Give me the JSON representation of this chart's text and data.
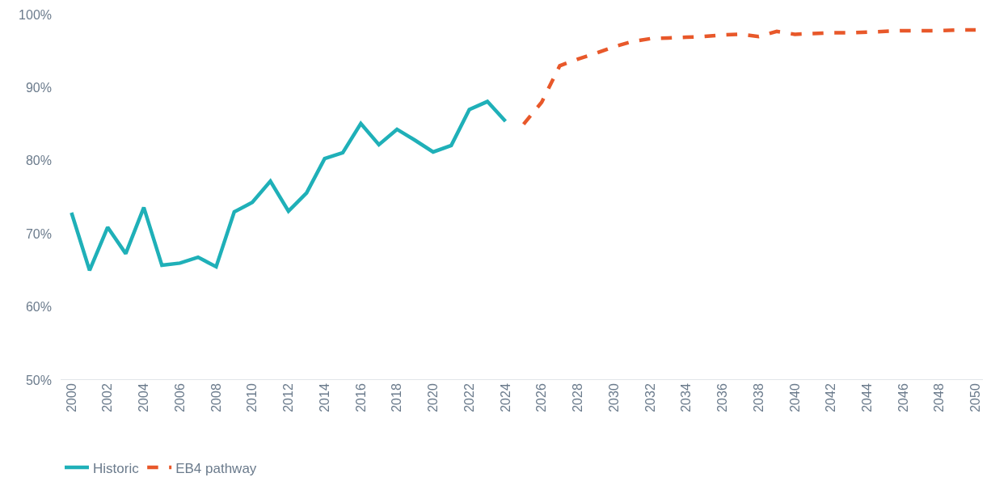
{
  "chart_data": {
    "type": "line",
    "ylim": [
      50,
      100
    ],
    "yticks": [
      {
        "value": 50,
        "label": "50%"
      },
      {
        "value": 60,
        "label": "60%"
      },
      {
        "value": 70,
        "label": "70%"
      },
      {
        "value": 80,
        "label": "80%"
      },
      {
        "value": 90,
        "label": "90%"
      },
      {
        "value": 100,
        "label": "100%"
      }
    ],
    "xlim": [
      1999.4,
      2050.4
    ],
    "xticks": [
      2000,
      2002,
      2004,
      2006,
      2008,
      2010,
      2012,
      2014,
      2016,
      2018,
      2020,
      2022,
      2024,
      2026,
      2028,
      2030,
      2032,
      2034,
      2036,
      2038,
      2040,
      2042,
      2044,
      2046,
      2048,
      2050
    ],
    "grid": false,
    "legend": "bottom left",
    "marker": "none",
    "series": [
      {
        "name": "Historic",
        "color": "#1fb0b8",
        "line_style": "solid",
        "x": [
          2000,
          2001,
          2002,
          2003,
          2004,
          2005,
          2006,
          2007,
          2008,
          2009,
          2010,
          2011,
          2012,
          2013,
          2014,
          2015,
          2016,
          2017,
          2018,
          2019,
          2020,
          2021,
          2022,
          2023,
          2024
        ],
        "values": [
          72.9,
          65.0,
          70.9,
          67.3,
          73.6,
          65.7,
          66.0,
          66.8,
          65.5,
          73.0,
          74.3,
          77.2,
          73.1,
          75.6,
          80.3,
          81.1,
          85.1,
          82.2,
          84.3,
          82.8,
          81.2,
          82.1,
          87.0,
          88.1,
          85.4
        ]
      },
      {
        "name": "EB4 pathway",
        "color": "#e8582a",
        "line_style": "dashed",
        "x": [
          2025,
          2026,
          2027,
          2028,
          2029,
          2030,
          2031,
          2032,
          2033,
          2034,
          2035,
          2036,
          2037,
          2038,
          2039,
          2040,
          2041,
          2042,
          2043,
          2044,
          2045,
          2046,
          2047,
          2048,
          2049,
          2050
        ],
        "values": [
          85.0,
          88.0,
          93.0,
          93.9,
          94.7,
          95.6,
          96.3,
          96.7,
          96.8,
          96.9,
          97.0,
          97.2,
          97.3,
          97.0,
          97.7,
          97.3,
          97.4,
          97.5,
          97.5,
          97.6,
          97.7,
          97.8,
          97.8,
          97.8,
          97.9,
          97.9
        ]
      }
    ]
  }
}
